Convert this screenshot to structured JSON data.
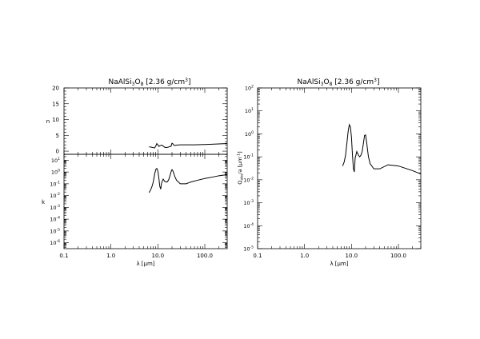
{
  "chart_data": [
    {
      "type": "line",
      "panel": "n",
      "title": "NaAlSi3O8 [2.36 g/cm3]",
      "title_parts": {
        "pre": "NaAlSi",
        "s1": "3",
        "mid": "O",
        "s2": "8",
        "post": " [2.36 g/cm",
        "sup": "3",
        "end": "]"
      },
      "ylabel": "n",
      "xscale": "log",
      "xlim": [
        0.1,
        300
      ],
      "ylim": [
        -1,
        20
      ],
      "yticks": [
        "0",
        "5",
        "10",
        "15",
        "20"
      ],
      "ytick_values": [
        0,
        5,
        10,
        15,
        20
      ],
      "grid": false,
      "series": [
        {
          "x": [
            6.5,
            7,
            7.5,
            8,
            8.5,
            9,
            9.5,
            10,
            10.5,
            11,
            12,
            13,
            14,
            15,
            16,
            17,
            18,
            19,
            20,
            21,
            22,
            23,
            25,
            30,
            40,
            60,
            100,
            200,
            300
          ],
          "y": [
            1.35,
            1.3,
            1.2,
            1.1,
            1.0,
            1.6,
            2.4,
            2.0,
            1.5,
            1.7,
            1.9,
            1.6,
            1.2,
            1.15,
            1.2,
            1.3,
            1.5,
            1.5,
            2.5,
            2.3,
            1.9,
            1.8,
            1.9,
            2.0,
            2.0,
            2.0,
            2.1,
            2.3,
            2.4
          ]
        }
      ]
    },
    {
      "type": "line",
      "panel": "k",
      "ylabel": "k",
      "xlabel": "λ [μm]",
      "xscale": "log",
      "yscale": "log",
      "xlim": [
        0.1,
        300
      ],
      "ylim": [
        3.16e-07,
        31.6
      ],
      "xticks": [
        "0.1",
        "1.0",
        "10.0",
        "100.0"
      ],
      "xtick_values": [
        0.1,
        1,
        10,
        100
      ],
      "yticks": [
        {
          "base": "10",
          "exp": "1",
          "value": 10
        },
        {
          "base": "10",
          "exp": "0",
          "value": 1
        },
        {
          "base": "10",
          "exp": "-1",
          "value": 0.1
        },
        {
          "base": "10",
          "exp": "-2",
          "value": 0.01
        },
        {
          "base": "10",
          "exp": "-3",
          "value": 0.001
        },
        {
          "base": "10",
          "exp": "-4",
          "value": 0.0001
        },
        {
          "base": "10",
          "exp": "-5",
          "value": 1e-05
        },
        {
          "base": "10",
          "exp": "-6",
          "value": 1e-06
        }
      ],
      "grid": false,
      "series": [
        {
          "x": [
            6.5,
            7,
            7.5,
            8,
            8.5,
            9,
            9.5,
            10,
            10.5,
            11,
            11.5,
            12,
            13,
            14,
            15,
            16,
            17,
            18,
            19,
            20,
            21,
            22,
            23,
            25,
            30,
            40,
            50,
            70,
            100,
            150,
            200,
            300
          ],
          "y": [
            0.018,
            0.03,
            0.06,
            0.15,
            0.6,
            1.6,
            2.0,
            1.2,
            0.3,
            0.06,
            0.035,
            0.12,
            0.25,
            0.16,
            0.14,
            0.15,
            0.22,
            0.45,
            1.0,
            1.6,
            1.2,
            0.7,
            0.4,
            0.2,
            0.1,
            0.1,
            0.14,
            0.2,
            0.28,
            0.38,
            0.48,
            0.6
          ]
        }
      ]
    },
    {
      "type": "line",
      "panel": "qabs",
      "title": "NaAlSi3O8 [2.36 g/cm3]",
      "title_parts": {
        "pre": "NaAlSi",
        "s1": "3",
        "mid": "O",
        "s2": "8",
        "post": " [2.36 g/cm",
        "sup": "3",
        "end": "]"
      },
      "ylabel": "Qabs/a [μm⁻¹]",
      "ylabel_parts": {
        "pre": "Q",
        "sub": "abs",
        "post": "/a [μm",
        "sup": "-1",
        "end": "]"
      },
      "xlabel": "λ [μm]",
      "xscale": "log",
      "yscale": "log",
      "xlim": [
        0.1,
        300
      ],
      "ylim": [
        1e-05,
        100
      ],
      "xticks": [
        "0.1",
        "1.0",
        "10.0",
        "100.0"
      ],
      "xtick_values": [
        0.1,
        1,
        10,
        100
      ],
      "yticks": [
        {
          "base": "10",
          "exp": "2",
          "value": 100
        },
        {
          "base": "10",
          "exp": "1",
          "value": 10
        },
        {
          "base": "10",
          "exp": "0",
          "value": 1
        },
        {
          "base": "10",
          "exp": "-1",
          "value": 0.1
        },
        {
          "base": "10",
          "exp": "-2",
          "value": 0.01
        },
        {
          "base": "10",
          "exp": "-3",
          "value": 0.001
        },
        {
          "base": "10",
          "exp": "-4",
          "value": 0.0001
        },
        {
          "base": "10",
          "exp": "-5",
          "value": 1e-05
        }
      ],
      "grid": false,
      "series": [
        {
          "x": [
            6.5,
            7,
            7.5,
            8,
            8.5,
            9,
            9.5,
            10,
            10.5,
            11,
            11.5,
            12,
            13,
            14,
            15,
            16,
            17,
            18,
            19,
            20,
            21,
            22,
            23,
            25,
            30,
            40,
            60,
            100,
            200,
            300
          ],
          "y": [
            0.04,
            0.06,
            0.12,
            0.4,
            1.3,
            2.5,
            2.0,
            0.7,
            0.12,
            0.03,
            0.022,
            0.09,
            0.17,
            0.12,
            0.1,
            0.12,
            0.18,
            0.4,
            0.85,
            0.9,
            0.45,
            0.2,
            0.1,
            0.05,
            0.03,
            0.03,
            0.045,
            0.04,
            0.025,
            0.018
          ]
        }
      ]
    }
  ]
}
